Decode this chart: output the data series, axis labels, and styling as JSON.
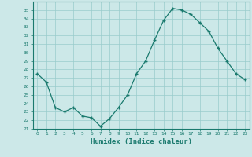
{
  "x": [
    0,
    1,
    2,
    3,
    4,
    5,
    6,
    7,
    8,
    9,
    10,
    11,
    12,
    13,
    14,
    15,
    16,
    17,
    18,
    19,
    20,
    21,
    22,
    23
  ],
  "y": [
    27.5,
    26.5,
    23.5,
    23.0,
    23.5,
    22.5,
    22.3,
    21.3,
    22.2,
    23.5,
    25.0,
    27.5,
    29.0,
    31.5,
    33.8,
    35.2,
    35.0,
    34.5,
    33.5,
    32.5,
    30.5,
    29.0,
    27.5,
    26.8
  ],
  "xlabel": "Humidex (Indice chaleur)",
  "ylim": [
    21,
    36
  ],
  "xlim": [
    -0.5,
    23.5
  ],
  "yticks": [
    21,
    22,
    23,
    24,
    25,
    26,
    27,
    28,
    29,
    30,
    31,
    32,
    33,
    34,
    35
  ],
  "xticks": [
    0,
    1,
    2,
    3,
    4,
    5,
    6,
    7,
    8,
    9,
    10,
    11,
    12,
    13,
    14,
    15,
    16,
    17,
    18,
    19,
    20,
    21,
    22,
    23
  ],
  "line_color": "#1a7a6e",
  "marker": "+",
  "bg_color": "#cce8e8",
  "grid_color": "#99cccc",
  "xlabel_color": "#1a7a6e",
  "tick_color": "#1a7a6e",
  "spine_color": "#1a7a6e"
}
